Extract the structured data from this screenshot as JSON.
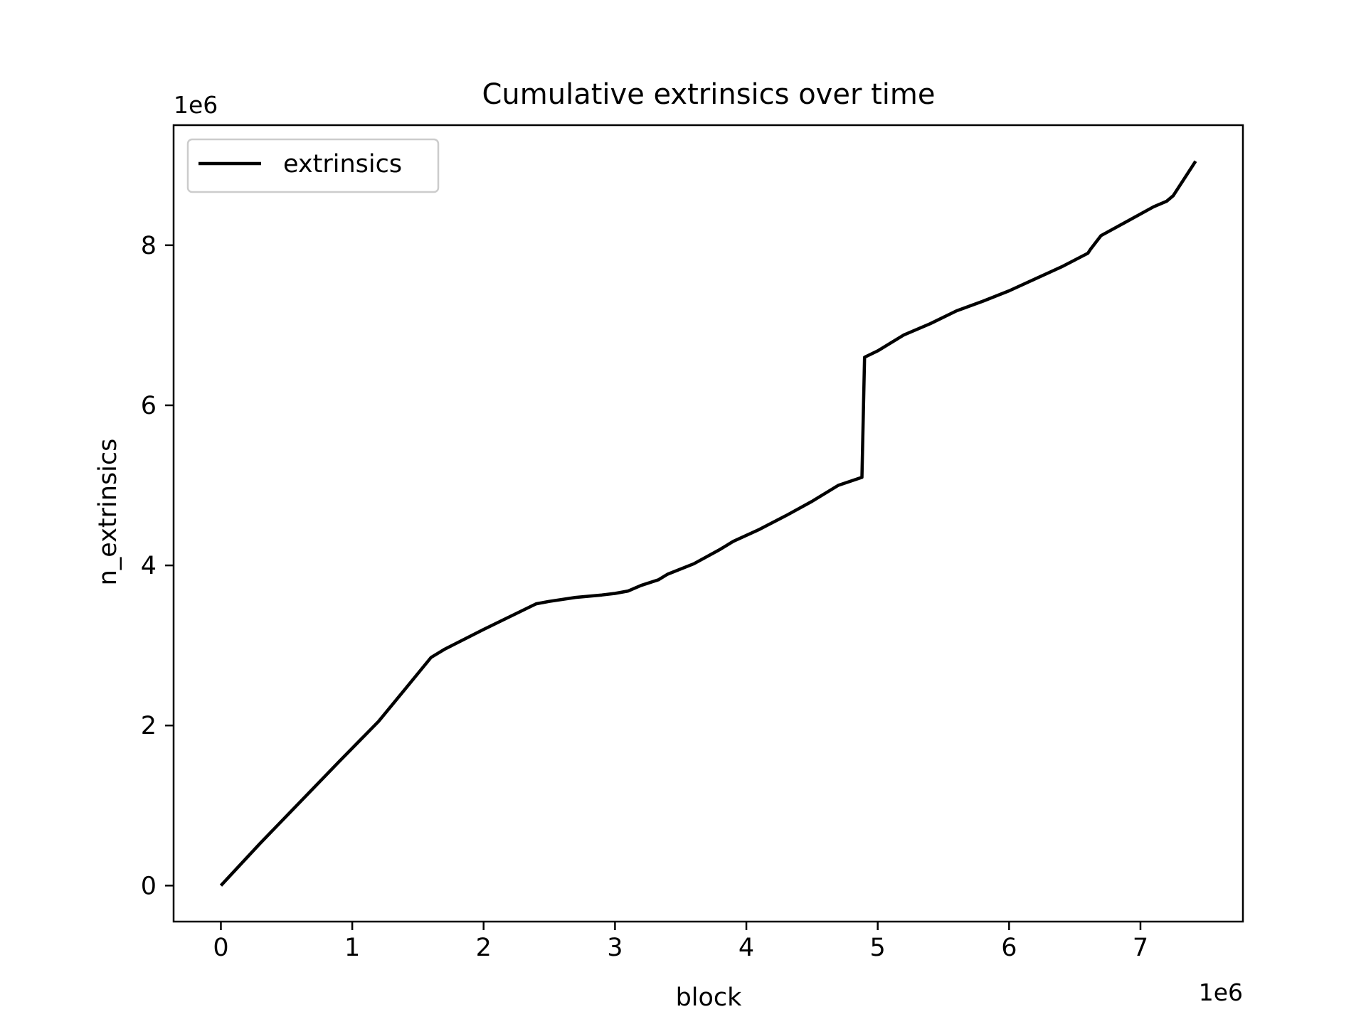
{
  "chart_data": {
    "type": "line",
    "title": "Cumulative extrinsics over time",
    "xlabel": "block",
    "ylabel": "n_extrinsics",
    "x_offset_label": "1e6",
    "y_offset_label": "1e6",
    "xlim": [
      -0.36,
      7.78
    ],
    "ylim": [
      -0.45,
      9.5
    ],
    "x_ticks": [
      0,
      1,
      2,
      3,
      4,
      5,
      6,
      7
    ],
    "x_tick_labels": [
      "0",
      "1",
      "2",
      "3",
      "4",
      "5",
      "6",
      "7"
    ],
    "y_ticks": [
      0,
      2,
      4,
      6,
      8
    ],
    "y_tick_labels": [
      "0",
      "2",
      "4",
      "6",
      "8"
    ],
    "grid": false,
    "legend": {
      "position": "upper-left",
      "entries": [
        "extrinsics"
      ]
    },
    "series": [
      {
        "name": "extrinsics",
        "color": "#000000",
        "x": [
          0,
          0.3,
          0.6,
          0.9,
          1.2,
          1.4,
          1.6,
          1.7,
          2.0,
          2.2,
          2.4,
          2.5,
          2.7,
          2.9,
          3.0,
          3.1,
          3.2,
          3.33,
          3.4,
          3.6,
          3.8,
          3.9,
          4.1,
          4.3,
          4.5,
          4.7,
          4.88,
          4.9,
          5.0,
          5.2,
          5.4,
          5.6,
          5.8,
          6.0,
          6.2,
          6.4,
          6.6,
          6.62,
          6.7,
          6.9,
          7.1,
          7.2,
          7.25,
          7.42
        ],
        "y": [
          0,
          0.53,
          1.04,
          1.55,
          2.05,
          2.45,
          2.85,
          2.95,
          3.2,
          3.36,
          3.52,
          3.55,
          3.6,
          3.63,
          3.65,
          3.68,
          3.75,
          3.82,
          3.89,
          4.02,
          4.2,
          4.3,
          4.45,
          4.62,
          4.8,
          5.0,
          5.1,
          6.6,
          6.68,
          6.88,
          7.02,
          7.18,
          7.3,
          7.43,
          7.58,
          7.73,
          7.9,
          7.95,
          8.12,
          8.3,
          8.48,
          8.55,
          8.62,
          9.05
        ]
      }
    ]
  }
}
